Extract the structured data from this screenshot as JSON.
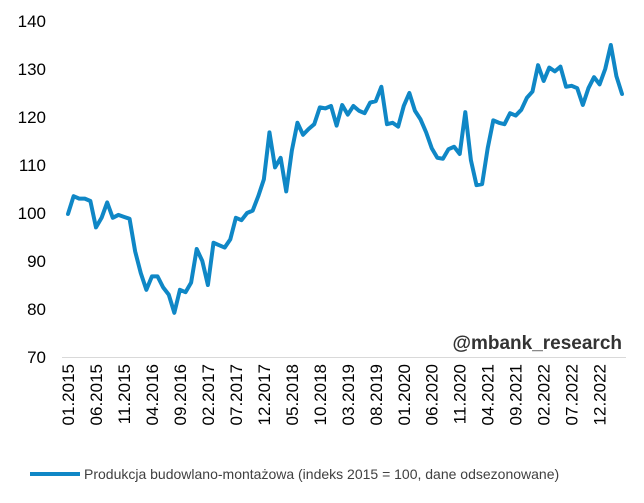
{
  "chart_data": {
    "type": "line",
    "ylim": [
      70,
      140
    ],
    "yticks": [
      70,
      80,
      90,
      100,
      110,
      120,
      130,
      140
    ],
    "xtick_labels": [
      "01.2015",
      "06.2015",
      "11.2015",
      "04.2016",
      "09.2016",
      "02.2017",
      "07.2017",
      "12.2017",
      "05.2018",
      "10.2018",
      "03.2019",
      "08.2019",
      "01.2020",
      "06.2020",
      "11.2020",
      "04.2021",
      "09.2021",
      "02.2022",
      "07.2022",
      "12.2022"
    ],
    "grid": false,
    "legend_position": "bottom",
    "watermark": "@mbank_research",
    "series": [
      {
        "name": "Produkcja budowlano-montażowa (indeks 2015 = 100, dane odsezonowane)",
        "color": "#0f87c6",
        "start": "2015-01",
        "values": [
          99.8,
          103.5,
          103.0,
          103.0,
          102.5,
          97.0,
          99.0,
          102.2,
          99.0,
          99.6,
          99.2,
          98.8,
          92.0,
          87.5,
          84.0,
          86.8,
          86.8,
          84.5,
          83.0,
          79.2,
          84.0,
          83.5,
          85.5,
          92.5,
          90.0,
          85.0,
          93.8,
          93.3,
          92.8,
          94.5,
          99.0,
          98.5,
          100.0,
          100.5,
          103.5,
          107.0,
          116.8,
          109.5,
          111.5,
          104.5,
          113.0,
          118.8,
          116.3,
          117.5,
          118.5,
          122.0,
          121.8,
          122.3,
          118.2,
          122.5,
          120.5,
          122.3,
          121.3,
          120.8,
          123.0,
          123.3,
          126.3,
          118.5,
          118.8,
          118.0,
          122.3,
          125.0,
          121.3,
          119.5,
          116.8,
          113.5,
          111.5,
          111.3,
          113.3,
          113.8,
          112.3,
          121.0,
          111.0,
          105.8,
          106.0,
          113.5,
          119.3,
          118.8,
          118.5,
          120.8,
          120.3,
          121.5,
          124.0,
          125.3,
          130.8,
          127.5,
          130.3,
          129.5,
          130.5,
          126.3,
          126.5,
          126.0,
          122.5,
          126.0,
          128.3,
          126.8,
          130.0,
          135.0,
          128.5,
          124.8
        ]
      }
    ]
  }
}
